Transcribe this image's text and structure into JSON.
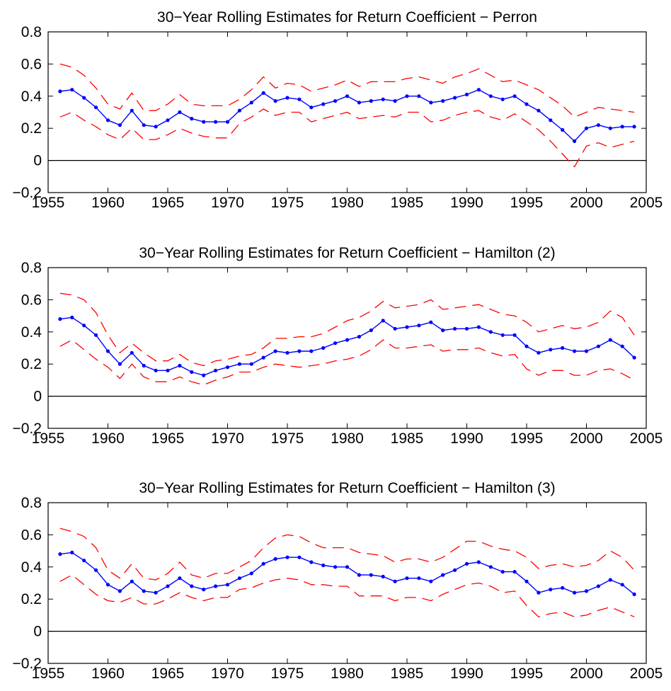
{
  "chart_data": [
    {
      "type": "line",
      "title": "30−Year Rolling Estimates for Return Coefficient − Perron",
      "xlabel": "",
      "ylabel": "",
      "xlim": [
        1955,
        2005
      ],
      "ylim": [
        -0.2,
        0.8
      ],
      "xticks": [
        "1955",
        "1960",
        "1965",
        "1970",
        "1975",
        "1980",
        "1985",
        "1990",
        "1995",
        "2000",
        "2005"
      ],
      "yticks": [
        "−0.2",
        "0",
        "0.2",
        "0.4",
        "0.6",
        "0.8"
      ],
      "x": [
        1956,
        1957,
        1958,
        1959,
        1960,
        1961,
        1962,
        1963,
        1964,
        1965,
        1966,
        1967,
        1968,
        1969,
        1970,
        1971,
        1972,
        1973,
        1974,
        1975,
        1976,
        1977,
        1978,
        1979,
        1980,
        1981,
        1982,
        1983,
        1984,
        1985,
        1986,
        1987,
        1988,
        1989,
        1990,
        1991,
        1992,
        1993,
        1994,
        1995,
        1996,
        1997,
        1998,
        1999,
        2000,
        2001,
        2002,
        2003,
        2004
      ],
      "series": [
        {
          "role": "estimate",
          "color": "#0000ff",
          "values": [
            0.43,
            0.44,
            0.39,
            0.33,
            0.25,
            0.22,
            0.31,
            0.22,
            0.21,
            0.25,
            0.3,
            0.26,
            0.24,
            0.24,
            0.24,
            0.31,
            0.36,
            0.42,
            0.37,
            0.39,
            0.38,
            0.33,
            0.35,
            0.37,
            0.4,
            0.36,
            0.37,
            0.38,
            0.37,
            0.4,
            0.4,
            0.36,
            0.37,
            0.39,
            0.41,
            0.44,
            0.4,
            0.38,
            0.4,
            0.35,
            0.31,
            0.25,
            0.19,
            0.12,
            0.2,
            0.22,
            0.2,
            0.21,
            0.21
          ]
        },
        {
          "role": "upper band",
          "color": "#ff0000",
          "values": [
            0.6,
            0.58,
            0.53,
            0.45,
            0.35,
            0.32,
            0.42,
            0.31,
            0.31,
            0.35,
            0.41,
            0.35,
            0.34,
            0.34,
            0.34,
            0.38,
            0.44,
            0.52,
            0.45,
            0.48,
            0.47,
            0.43,
            0.45,
            0.47,
            0.5,
            0.46,
            0.49,
            0.49,
            0.49,
            0.51,
            0.52,
            0.5,
            0.48,
            0.52,
            0.54,
            0.57,
            0.53,
            0.49,
            0.5,
            0.47,
            0.44,
            0.39,
            0.34,
            0.27,
            0.3,
            0.33,
            0.32,
            0.31,
            0.3
          ]
        },
        {
          "role": "lower band",
          "color": "#ff0000",
          "values": [
            0.27,
            0.3,
            0.25,
            0.21,
            0.16,
            0.13,
            0.2,
            0.13,
            0.13,
            0.16,
            0.2,
            0.17,
            0.15,
            0.14,
            0.14,
            0.23,
            0.27,
            0.32,
            0.28,
            0.3,
            0.3,
            0.24,
            0.26,
            0.28,
            0.3,
            0.26,
            0.27,
            0.28,
            0.27,
            0.3,
            0.3,
            0.24,
            0.25,
            0.28,
            0.3,
            0.31,
            0.27,
            0.25,
            0.29,
            0.24,
            0.19,
            0.12,
            0.04,
            -0.04,
            0.09,
            0.11,
            0.08,
            0.1,
            0.12
          ]
        }
      ]
    },
    {
      "type": "line",
      "title": "30−Year Rolling Estimates for Return Coefficient − Hamilton (2)",
      "xlabel": "",
      "ylabel": "",
      "xlim": [
        1955,
        2005
      ],
      "ylim": [
        -0.2,
        0.8
      ],
      "xticks": [
        "1955",
        "1960",
        "1965",
        "1970",
        "1975",
        "1980",
        "1985",
        "1990",
        "1995",
        "2000",
        "2005"
      ],
      "yticks": [
        "−0.2",
        "0",
        "0.2",
        "0.4",
        "0.6",
        "0.8"
      ],
      "x": [
        1956,
        1957,
        1958,
        1959,
        1960,
        1961,
        1962,
        1963,
        1964,
        1965,
        1966,
        1967,
        1968,
        1969,
        1970,
        1971,
        1972,
        1973,
        1974,
        1975,
        1976,
        1977,
        1978,
        1979,
        1980,
        1981,
        1982,
        1983,
        1984,
        1985,
        1986,
        1987,
        1988,
        1989,
        1990,
        1991,
        1992,
        1993,
        1994,
        1995,
        1996,
        1997,
        1998,
        1999,
        2000,
        2001,
        2002,
        2003,
        2004
      ],
      "series": [
        {
          "role": "estimate",
          "color": "#0000ff",
          "values": [
            0.48,
            0.49,
            0.44,
            0.38,
            0.28,
            0.2,
            0.27,
            0.19,
            0.16,
            0.16,
            0.19,
            0.15,
            0.13,
            0.16,
            0.18,
            0.2,
            0.2,
            0.24,
            0.28,
            0.27,
            0.28,
            0.28,
            0.3,
            0.33,
            0.35,
            0.37,
            0.41,
            0.47,
            0.42,
            0.43,
            0.44,
            0.46,
            0.41,
            0.42,
            0.42,
            0.43,
            0.4,
            0.38,
            0.38,
            0.31,
            0.27,
            0.29,
            0.3,
            0.28,
            0.28,
            0.31,
            0.35,
            0.31,
            0.24
          ]
        },
        {
          "role": "upper band",
          "color": "#ff0000",
          "values": [
            0.64,
            0.63,
            0.6,
            0.52,
            0.38,
            0.27,
            0.33,
            0.27,
            0.22,
            0.22,
            0.26,
            0.21,
            0.19,
            0.22,
            0.23,
            0.25,
            0.26,
            0.3,
            0.36,
            0.36,
            0.37,
            0.37,
            0.39,
            0.43,
            0.47,
            0.49,
            0.53,
            0.59,
            0.55,
            0.56,
            0.57,
            0.6,
            0.54,
            0.55,
            0.56,
            0.57,
            0.54,
            0.51,
            0.5,
            0.46,
            0.4,
            0.42,
            0.44,
            0.42,
            0.43,
            0.46,
            0.53,
            0.49,
            0.38
          ]
        },
        {
          "role": "lower band",
          "color": "#ff0000",
          "values": [
            0.31,
            0.35,
            0.29,
            0.23,
            0.18,
            0.11,
            0.2,
            0.12,
            0.09,
            0.09,
            0.12,
            0.09,
            0.07,
            0.1,
            0.12,
            0.15,
            0.15,
            0.18,
            0.2,
            0.19,
            0.18,
            0.19,
            0.2,
            0.22,
            0.23,
            0.25,
            0.29,
            0.35,
            0.3,
            0.3,
            0.31,
            0.32,
            0.28,
            0.29,
            0.29,
            0.3,
            0.27,
            0.25,
            0.26,
            0.17,
            0.13,
            0.16,
            0.16,
            0.13,
            0.13,
            0.16,
            0.17,
            0.14,
            0.1
          ]
        }
      ]
    },
    {
      "type": "line",
      "title": "30−Year Rolling Estimates for Return Coefficient − Hamilton (3)",
      "xlabel": "",
      "ylabel": "",
      "xlim": [
        1955,
        2005
      ],
      "ylim": [
        -0.2,
        0.8
      ],
      "xticks": [
        "1955",
        "1960",
        "1965",
        "1970",
        "1975",
        "1980",
        "1985",
        "1990",
        "1995",
        "2000",
        "2005"
      ],
      "yticks": [
        "−0.2",
        "0",
        "0.2",
        "0.4",
        "0.6",
        "0.8"
      ],
      "x": [
        1956,
        1957,
        1958,
        1959,
        1960,
        1961,
        1962,
        1963,
        1964,
        1965,
        1966,
        1967,
        1968,
        1969,
        1970,
        1971,
        1972,
        1973,
        1974,
        1975,
        1976,
        1977,
        1978,
        1979,
        1980,
        1981,
        1982,
        1983,
        1984,
        1985,
        1986,
        1987,
        1988,
        1989,
        1990,
        1991,
        1992,
        1993,
        1994,
        1995,
        1996,
        1997,
        1998,
        1999,
        2000,
        2001,
        2002,
        2003,
        2004
      ],
      "series": [
        {
          "role": "estimate",
          "color": "#0000ff",
          "values": [
            0.48,
            0.49,
            0.44,
            0.38,
            0.29,
            0.25,
            0.31,
            0.25,
            0.24,
            0.28,
            0.33,
            0.28,
            0.26,
            0.28,
            0.29,
            0.33,
            0.36,
            0.42,
            0.45,
            0.46,
            0.46,
            0.43,
            0.41,
            0.4,
            0.4,
            0.35,
            0.35,
            0.34,
            0.31,
            0.33,
            0.33,
            0.31,
            0.35,
            0.38,
            0.42,
            0.43,
            0.4,
            0.37,
            0.37,
            0.31,
            0.24,
            0.26,
            0.27,
            0.24,
            0.25,
            0.28,
            0.32,
            0.29,
            0.23
          ]
        },
        {
          "role": "upper band",
          "color": "#ff0000",
          "values": [
            0.64,
            0.62,
            0.59,
            0.52,
            0.38,
            0.33,
            0.42,
            0.33,
            0.32,
            0.36,
            0.43,
            0.35,
            0.33,
            0.36,
            0.36,
            0.4,
            0.44,
            0.52,
            0.58,
            0.6,
            0.59,
            0.55,
            0.52,
            0.52,
            0.52,
            0.49,
            0.48,
            0.47,
            0.43,
            0.45,
            0.45,
            0.43,
            0.46,
            0.51,
            0.56,
            0.56,
            0.53,
            0.51,
            0.5,
            0.46,
            0.39,
            0.41,
            0.42,
            0.4,
            0.41,
            0.44,
            0.5,
            0.46,
            0.38
          ]
        },
        {
          "role": "lower band",
          "color": "#ff0000",
          "values": [
            0.31,
            0.35,
            0.29,
            0.23,
            0.19,
            0.18,
            0.21,
            0.17,
            0.17,
            0.2,
            0.24,
            0.21,
            0.19,
            0.21,
            0.21,
            0.26,
            0.27,
            0.3,
            0.32,
            0.33,
            0.32,
            0.29,
            0.29,
            0.28,
            0.28,
            0.22,
            0.22,
            0.22,
            0.19,
            0.21,
            0.21,
            0.19,
            0.23,
            0.26,
            0.29,
            0.3,
            0.28,
            0.24,
            0.25,
            0.16,
            0.09,
            0.11,
            0.12,
            0.09,
            0.1,
            0.13,
            0.15,
            0.12,
            0.09
          ]
        }
      ]
    }
  ]
}
